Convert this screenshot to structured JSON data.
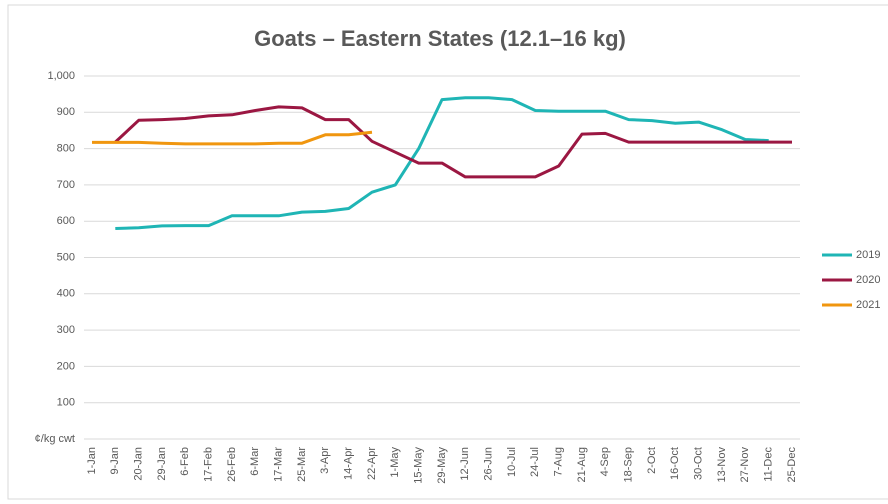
{
  "chart_data": {
    "type": "line",
    "title": "Goats – Eastern States (12.1–16 kg)",
    "categories": [
      "1-Jan",
      "9-Jan",
      "20-Jan",
      "29-Jan",
      "6-Feb",
      "17-Feb",
      "26-Feb",
      "6-Mar",
      "17-Mar",
      "25-Mar",
      "3-Apr",
      "14-Apr",
      "22-Apr",
      "1-May",
      "15-May",
      "29-May",
      "12-Jun",
      "26-Jun",
      "10-Jul",
      "24-Jul",
      "7-Aug",
      "21-Aug",
      "4-Sep",
      "18-Sep",
      "2-Oct",
      "16-Oct",
      "30-Oct",
      "13-Nov",
      "27-Nov",
      "11-Dec",
      "25-Dec"
    ],
    "series": [
      {
        "name": "2019",
        "color": "#1fb5b5",
        "values": [
          null,
          580,
          582,
          587,
          588,
          588,
          615,
          615,
          615,
          625,
          627,
          635,
          680,
          700,
          800,
          935,
          940,
          940,
          935,
          905,
          903,
          903,
          903,
          880,
          877,
          870,
          873,
          852,
          825,
          822,
          null
        ]
      },
      {
        "name": "2020",
        "color": "#9b1742",
        "values": [
          null,
          818,
          878,
          880,
          883,
          890,
          893,
          905,
          915,
          912,
          880,
          880,
          820,
          790,
          760,
          760,
          722,
          722,
          722,
          722,
          752,
          840,
          842,
          818,
          818,
          818,
          818,
          818,
          818,
          818,
          818
        ]
      },
      {
        "name": "2021",
        "color": "#f0960f",
        "values": [
          817,
          817,
          817,
          815,
          813,
          813,
          813,
          813,
          815,
          815,
          838,
          838,
          845,
          null,
          null,
          null,
          null,
          null,
          null,
          null,
          null,
          null,
          null,
          null,
          null,
          null,
          null,
          null,
          null,
          null,
          null
        ]
      }
    ],
    "ylim": [
      0,
      1000
    ],
    "yticks": [
      {
        "value": 0,
        "label": "¢/kg cwt"
      },
      100,
      200,
      300,
      400,
      500,
      600,
      700,
      800,
      900,
      {
        "value": 1000,
        "label": "1,000"
      }
    ],
    "grid": true,
    "legend": "right"
  }
}
